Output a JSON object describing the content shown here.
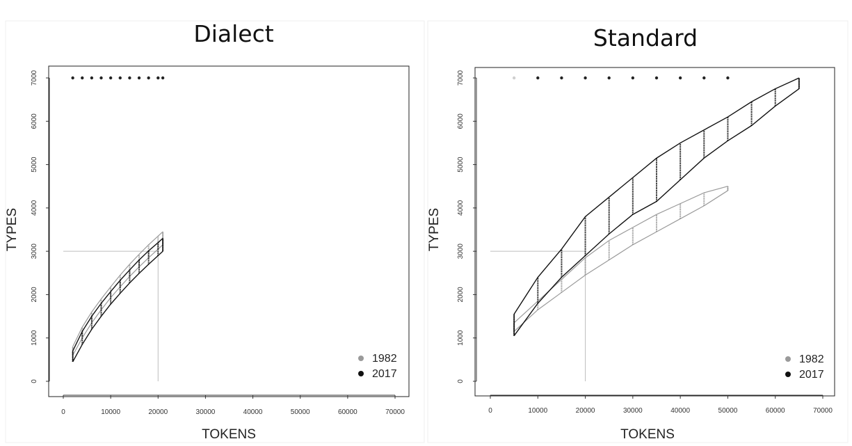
{
  "chart_data": [
    {
      "type": "line",
      "title": "Dialect",
      "xlabel": "TOKENS",
      "ylabel": "TYPES",
      "xlim": [
        0,
        70000
      ],
      "ylim": [
        0,
        7000
      ],
      "xticks": [
        "0",
        "10000",
        "20000",
        "30000",
        "40000",
        "50000",
        "60000",
        "70000"
      ],
      "yticks": [
        "0",
        "1000",
        "2000",
        "3000",
        "4000",
        "5000",
        "6000",
        "7000"
      ],
      "legend": {
        "position": "bottom-right",
        "entries": [
          {
            "label": "1982",
            "color": "#9a9a9a"
          },
          {
            "label": "2017",
            "color": "#111111"
          }
        ]
      },
      "reference": {
        "x": 20000,
        "y": 3000
      },
      "top_markers": {
        "y": 7000,
        "x": [
          2000,
          4000,
          6000,
          8000,
          10000,
          12000,
          14000,
          16000,
          18000,
          20000,
          21000
        ]
      },
      "series": [
        {
          "name": "1982",
          "color": "#9a9a9a",
          "x": [
            2000,
            4000,
            6000,
            8000,
            10000,
            12000,
            14000,
            16000,
            18000,
            20000,
            21000
          ],
          "lower": [
            600,
            1000,
            1350,
            1650,
            1930,
            2180,
            2420,
            2640,
            2850,
            3050,
            3150
          ],
          "upper": [
            800,
            1250,
            1600,
            1900,
            2180,
            2450,
            2700,
            2930,
            3150,
            3350,
            3450
          ]
        },
        {
          "name": "2017",
          "color": "#111111",
          "x": [
            2000,
            4000,
            6000,
            8000,
            10000,
            12000,
            14000,
            16000,
            18000,
            20000,
            21000
          ],
          "lower": [
            450,
            850,
            1200,
            1500,
            1780,
            2030,
            2270,
            2490,
            2700,
            2900,
            3000
          ],
          "upper": [
            700,
            1150,
            1500,
            1800,
            2070,
            2330,
            2570,
            2800,
            3010,
            3200,
            3300
          ]
        }
      ]
    },
    {
      "type": "line",
      "title": "Standard",
      "xlabel": "TOKENS",
      "ylabel": "TYPES",
      "xlim": [
        0,
        70000
      ],
      "ylim": [
        0,
        7000
      ],
      "xticks": [
        "0",
        "10000",
        "20000",
        "30000",
        "40000",
        "50000",
        "60000",
        "70000"
      ],
      "yticks": [
        "0",
        "1000",
        "2000",
        "3000",
        "4000",
        "5000",
        "6000",
        "7000"
      ],
      "legend": {
        "position": "bottom-right",
        "entries": [
          {
            "label": "1982",
            "color": "#9a9a9a"
          },
          {
            "label": "2017",
            "color": "#111111"
          }
        ]
      },
      "reference": {
        "x": 20000,
        "y": 3000
      },
      "top_markers": {
        "y": 7000,
        "x": [
          5000,
          10000,
          15000,
          20000,
          25000,
          30000,
          35000,
          40000,
          45000,
          50000
        ]
      },
      "series": [
        {
          "name": "1982",
          "color": "#9a9a9a",
          "x": [
            5000,
            10000,
            15000,
            20000,
            25000,
            30000,
            35000,
            40000,
            45000,
            50000
          ],
          "lower": [
            1150,
            1650,
            2050,
            2450,
            2800,
            3150,
            3450,
            3750,
            4050,
            4400
          ],
          "upper": [
            1350,
            1850,
            2350,
            2850,
            3250,
            3550,
            3850,
            4100,
            4350,
            4500
          ]
        },
        {
          "name": "2017",
          "color": "#111111",
          "x": [
            5000,
            10000,
            15000,
            20000,
            25000,
            30000,
            35000,
            40000,
            45000,
            50000,
            55000,
            60000,
            65000
          ],
          "lower": [
            1050,
            1800,
            2400,
            2900,
            3400,
            3850,
            4150,
            4650,
            5150,
            5550,
            5900,
            6350,
            6750
          ],
          "upper": [
            1550,
            2400,
            3050,
            3800,
            4250,
            4700,
            5150,
            5500,
            5800,
            6100,
            6450,
            6750,
            7000
          ]
        }
      ]
    }
  ]
}
